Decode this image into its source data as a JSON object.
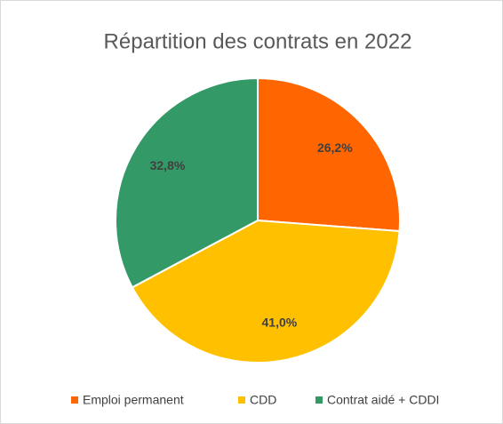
{
  "chart_data": {
    "type": "pie",
    "title": "Répartition des contrats en 2022",
    "categories": [
      "Emploi permanent",
      "CDD",
      "Contrat aidé + CDDI"
    ],
    "values": [
      26.2,
      41.0,
      32.8
    ],
    "value_labels": [
      "26,2%",
      "41,0%",
      "32,8%"
    ],
    "colors": [
      "#FF6600",
      "#FFC000",
      "#339966"
    ],
    "legend": "bottom"
  }
}
